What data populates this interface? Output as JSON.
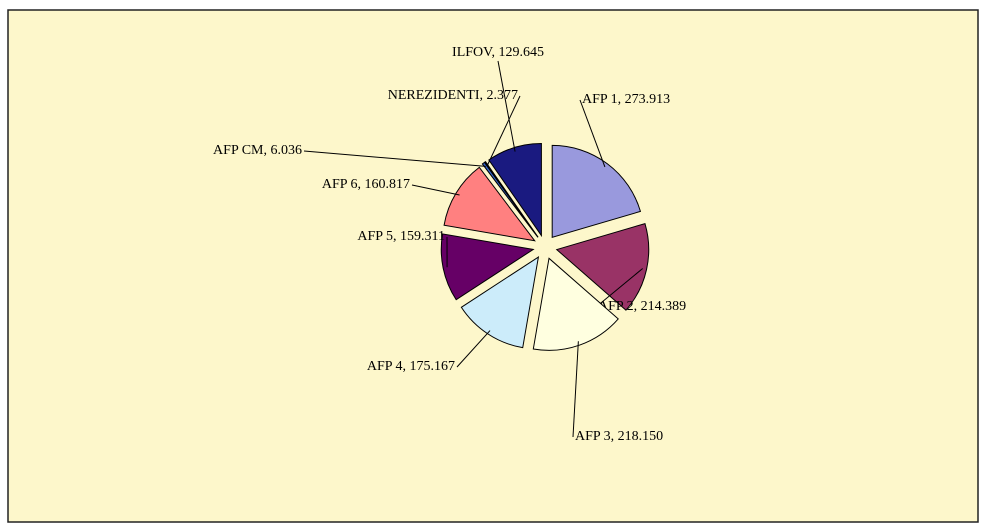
{
  "chart_data": {
    "type": "pie",
    "labels": [
      "AFP 1, 273.913",
      "AFP 2, 214.389",
      "AFP 3, 218.150",
      "AFP 4, 175.167",
      "AFP 5, 159.311",
      "AFP 6, 160.817",
      "AFP CM, 6.036",
      "NEREZIDENTI, 2.377",
      "ILFOV, 129.645"
    ],
    "values": [
      273.913,
      214.389,
      218.15,
      175.167,
      159.311,
      160.817,
      6.036,
      2.377,
      129.645
    ],
    "colors": [
      "#9999dd",
      "#993366",
      "#ffffe0",
      "#ccecfa",
      "#660066",
      "#ff8080",
      "#3366cc",
      "#c0c0c0",
      "#1a1a80"
    ]
  }
}
